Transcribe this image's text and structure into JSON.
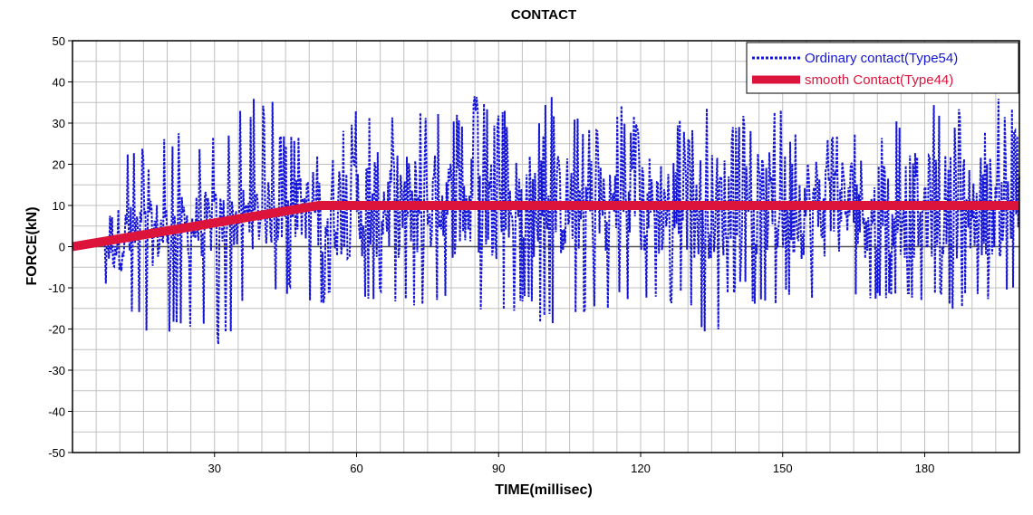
{
  "chart_data": {
    "type": "line",
    "title": "CONTACT",
    "xlabel": "TIME(millisec)",
    "ylabel": "FORCE(kN)",
    "xlim": [
      0,
      200
    ],
    "ylim": [
      -50,
      50
    ],
    "x_ticks": [
      30,
      60,
      90,
      120,
      150,
      180
    ],
    "x_tick_labels": [
      "30",
      "60",
      "90",
      "120",
      "150",
      "180"
    ],
    "y_ticks": [
      -50,
      -40,
      -30,
      -20,
      -10,
      0,
      10,
      20,
      30,
      40,
      50
    ],
    "y_tick_labels": [
      "-50",
      "-40",
      "-30",
      "-20",
      "-10",
      "0",
      "10",
      "20",
      "30",
      "40",
      "50"
    ],
    "grid": true,
    "legend_position": "top-right",
    "colors": {
      "ordinary": "#1515d8",
      "smooth": "#dc143c",
      "grid": "#c0c0c0",
      "zero": "#505050"
    },
    "series": [
      {
        "name": "Ordinary contact(Type54)",
        "style": "dotted",
        "color": "#1515d8",
        "description_points": {
          "x": [
            0,
            5,
            8,
            9,
            10,
            11,
            13,
            14,
            16,
            17,
            18,
            19,
            20,
            21,
            22,
            23,
            24,
            25,
            26,
            27,
            28,
            29,
            30,
            31,
            32,
            33,
            34,
            35,
            36,
            37,
            38,
            39,
            40,
            41,
            42,
            43,
            44,
            45,
            46,
            47,
            48,
            49,
            50,
            51,
            52,
            53,
            54,
            55,
            56,
            57,
            58,
            59,
            60,
            62,
            64,
            66,
            68,
            70,
            72,
            74,
            75,
            76,
            78,
            80,
            82,
            84,
            86,
            88,
            90,
            92,
            94,
            96,
            98,
            100,
            102,
            104,
            106,
            108,
            110,
            112,
            114,
            116,
            118,
            120,
            122,
            124,
            126,
            128,
            130,
            132,
            134,
            135,
            136,
            138,
            140,
            142,
            144,
            146,
            148,
            150,
            152,
            154,
            156,
            158,
            160,
            162,
            164,
            166,
            168,
            170,
            172,
            174,
            176,
            178,
            180,
            182,
            184,
            186,
            188,
            190,
            192,
            194,
            196,
            198,
            200
          ],
          "y": [
            0,
            0,
            11,
            -10,
            8,
            -8,
            24,
            -17,
            12,
            -21,
            21,
            -21,
            28,
            -20,
            22,
            -19,
            27,
            -21,
            26,
            -18,
            22,
            -19,
            28,
            -24,
            26,
            -16,
            30,
            -15,
            33,
            -14,
            26,
            -15,
            36,
            -12,
            30,
            -12,
            28,
            -8,
            26,
            -10,
            30,
            -6,
            27,
            -14,
            35,
            -12,
            33,
            -10,
            29,
            -13,
            31,
            -10,
            34,
            -13,
            33,
            -12,
            35,
            -14,
            35,
            -15,
            33,
            -15,
            37,
            -14,
            33,
            -16,
            37,
            -15,
            34,
            -17,
            33,
            -14,
            31,
            -19,
            37,
            -13,
            32,
            -16,
            30,
            -15,
            35,
            -13,
            32,
            -14,
            31,
            -14,
            33,
            -12,
            30,
            -15,
            34,
            -22,
            31,
            -12,
            30,
            -10,
            32,
            -15,
            35,
            -12,
            29,
            -13,
            33,
            -11,
            29,
            -11,
            32,
            -13,
            33,
            -13,
            31,
            -12,
            30,
            -13,
            36,
            -12,
            33,
            -16,
            34,
            -12,
            31,
            -13,
            36,
            -11,
            30
          ]
        }
      },
      {
        "name": "smooth Contact(Type44)",
        "style": "solid-thick",
        "color": "#dc143c",
        "x": [
          0,
          52,
          200
        ],
        "y": [
          0,
          10,
          10
        ]
      }
    ]
  }
}
